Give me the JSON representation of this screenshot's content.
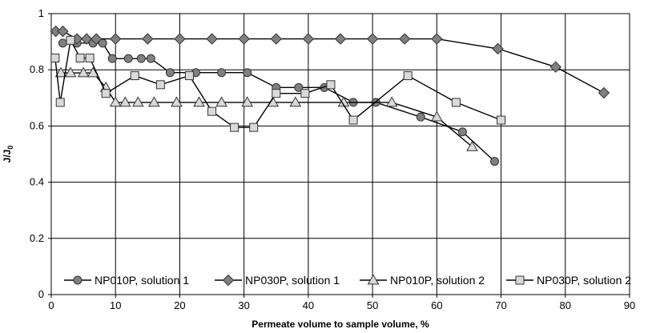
{
  "chart_data": {
    "type": "line",
    "title": "",
    "xlabel": "Permeate volume to sample volume, %",
    "ylabel": "J/J",
    "ylabel_subscript": "0",
    "xlim": [
      0,
      90
    ],
    "ylim": [
      0,
      1
    ],
    "x_ticks": [
      "0",
      "10",
      "20",
      "30",
      "40",
      "50",
      "60",
      "70",
      "80",
      "90"
    ],
    "y_ticks": [
      "0",
      "0.2",
      "0.4",
      "0.6",
      "0.8",
      "1"
    ],
    "grid": true,
    "legend_position": "bottom",
    "series": [
      {
        "name": "NP010P, solution 1",
        "marker": "circle",
        "color": "#808080",
        "x": [
          1.8,
          4.0,
          6.5,
          8.0,
          9.5,
          12.0,
          14.0,
          15.5,
          18.5,
          22.5,
          26.5,
          30.5,
          35.0,
          38.5,
          42.5,
          47.0,
          50.5,
          57.5,
          64.0,
          69.0
        ],
        "y": [
          0.895,
          0.895,
          0.895,
          0.895,
          0.84,
          0.84,
          0.84,
          0.84,
          0.79,
          0.79,
          0.79,
          0.79,
          0.737,
          0.737,
          0.737,
          0.684,
          0.684,
          0.632,
          0.579,
          0.474
        ]
      },
      {
        "name": "NP030P, solution 1",
        "marker": "diamond",
        "color": "#808080",
        "x": [
          0.7,
          1.8,
          4.0,
          5.5,
          7.0,
          10.0,
          15.0,
          20.0,
          25.0,
          30.0,
          35.0,
          40.0,
          45.0,
          50.0,
          55.0,
          60.0,
          69.5,
          78.5,
          86.0
        ],
        "y": [
          0.937,
          0.937,
          0.91,
          0.91,
          0.91,
          0.91,
          0.91,
          0.91,
          0.91,
          0.91,
          0.91,
          0.91,
          0.91,
          0.91,
          0.91,
          0.91,
          0.875,
          0.81,
          0.718
        ]
      },
      {
        "name": "NP010P, solution 2",
        "marker": "triangle",
        "color": "#d9d9d9",
        "x": [
          1.5,
          3.0,
          5.0,
          6.5,
          8.5,
          10.0,
          11.5,
          13.5,
          16.0,
          19.5,
          23.0,
          26.5,
          30.5,
          34.5,
          38.0,
          45.5,
          53.0,
          60.0,
          65.5
        ],
        "y": [
          0.789,
          0.789,
          0.789,
          0.789,
          0.737,
          0.684,
          0.684,
          0.684,
          0.684,
          0.684,
          0.684,
          0.684,
          0.684,
          0.684,
          0.684,
          0.684,
          0.684,
          0.632,
          0.526
        ]
      },
      {
        "name": "NP030P, solution 2",
        "marker": "square",
        "color": "#d9d9d9",
        "x": [
          0.6,
          1.4,
          3.0,
          4.5,
          6.0,
          8.5,
          13.0,
          17.0,
          21.5,
          25.0,
          28.5,
          31.5,
          35.0,
          39.5,
          43.5,
          47.0,
          55.5,
          63.0,
          70.0
        ],
        "y": [
          0.842,
          0.684,
          0.905,
          0.842,
          0.842,
          0.716,
          0.779,
          0.747,
          0.779,
          0.652,
          0.595,
          0.595,
          0.716,
          0.716,
          0.747,
          0.621,
          0.779,
          0.684,
          0.621
        ]
      }
    ]
  }
}
